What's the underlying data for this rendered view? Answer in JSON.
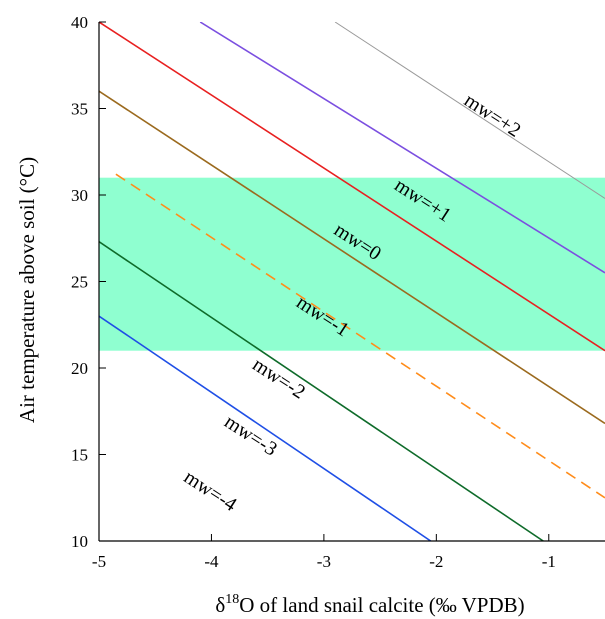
{
  "chart_data": {
    "type": "line",
    "title": "",
    "xlabel_parts": {
      "prefix": "δ",
      "sup": "18",
      "suffix": "O of land snail calcite (‰ VPDB)"
    },
    "ylabel": "Air temperature above soil (°C)",
    "xlim": [
      -5,
      -0.5
    ],
    "ylim": [
      10,
      40
    ],
    "xticks": [
      -5,
      -4,
      -3,
      -2,
      -1
    ],
    "yticks": [
      10,
      15,
      20,
      25,
      30,
      35,
      40
    ],
    "shaded_band": {
      "y_from": 21,
      "y_to": 31,
      "color": "#8fffd0"
    },
    "series": [
      {
        "name": "mw=+2",
        "color": "#9a9a9a",
        "dash": false,
        "width": 1,
        "points": [
          [
            -2.9,
            40
          ],
          [
            -0.5,
            29.8
          ]
        ]
      },
      {
        "name": "mw=+1",
        "color": "#7b4fe0",
        "dash": false,
        "width": 1.6,
        "points": [
          [
            -4.1,
            40
          ],
          [
            -0.5,
            25.5
          ]
        ]
      },
      {
        "name": "mw=0",
        "color": "#e82020",
        "dash": false,
        "width": 1.6,
        "points": [
          [
            -5,
            40
          ],
          [
            -0.5,
            21
          ]
        ]
      },
      {
        "name": "mw=-1",
        "color": "#9b6a1e",
        "dash": false,
        "width": 1.6,
        "points": [
          [
            -5,
            36
          ],
          [
            -0.5,
            16.8
          ]
        ]
      },
      {
        "name": "mw=-2",
        "color": "#ff8c1a",
        "dash": true,
        "width": 1.6,
        "points": [
          [
            -4.85,
            31.2
          ],
          [
            -0.5,
            12.5
          ]
        ]
      },
      {
        "name": "mw=-3",
        "color": "#0e6b2a",
        "dash": false,
        "width": 1.6,
        "points": [
          [
            -5,
            27.3
          ],
          [
            -1.05,
            10
          ]
        ]
      },
      {
        "name": "mw=-4",
        "color": "#1f4fe6",
        "dash": false,
        "width": 1.6,
        "points": [
          [
            -5,
            23
          ],
          [
            -2.05,
            10
          ]
        ]
      }
    ],
    "annotations": [
      {
        "text": "mw=+2",
        "x": -1.53,
        "y": 34.3
      },
      {
        "text": "mw=+1",
        "x": -2.15,
        "y": 29.4
      },
      {
        "text": "mw=0",
        "x": -2.73,
        "y": 27.0
      },
      {
        "text": "mw=-1",
        "x": -3.04,
        "y": 22.7
      },
      {
        "text": "mw=-2",
        "x": -3.43,
        "y": 19.1
      },
      {
        "text": "mw=-3",
        "x": -3.68,
        "y": 15.8
      },
      {
        "text": "mw=-4",
        "x": -4.04,
        "y": 12.6
      }
    ],
    "grid": false,
    "legend": "none"
  }
}
